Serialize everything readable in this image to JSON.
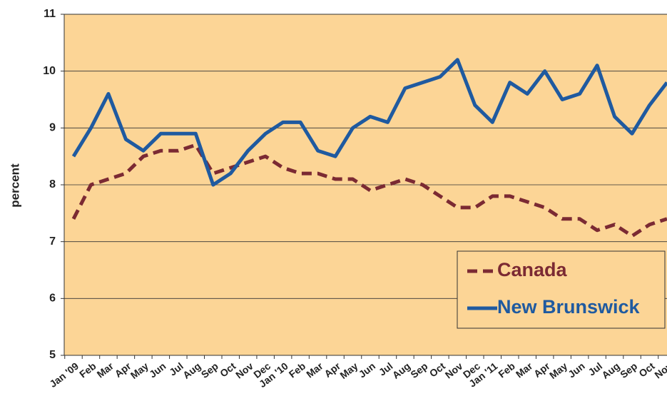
{
  "chart_data": {
    "type": "line",
    "y_label": "percent",
    "categories": [
      "Jan '09",
      "Feb",
      "Mar",
      "Apr",
      "May",
      "Jun",
      "Jul",
      "Aug",
      "Sep",
      "Oct",
      "Nov",
      "Dec",
      "Jan '10",
      "Feb",
      "Mar",
      "Apr",
      "May",
      "Jun",
      "Jul",
      "Aug",
      "Sep",
      "Oct",
      "Nov",
      "Dec",
      "Jan '11",
      "Feb",
      "Mar",
      "Apr",
      "May",
      "Jun",
      "Jul",
      "Aug",
      "Sep",
      "Oct",
      "Nov"
    ],
    "series": [
      {
        "name": "Canada",
        "color": "#7b2a33",
        "line_style": "dashed",
        "values": [
          7.4,
          8.0,
          8.1,
          8.2,
          8.5,
          8.6,
          8.6,
          8.7,
          8.2,
          8.3,
          8.4,
          8.5,
          8.3,
          8.2,
          8.2,
          8.1,
          8.1,
          7.9,
          8.0,
          8.1,
          8.0,
          7.8,
          7.6,
          7.6,
          7.8,
          7.8,
          7.7,
          7.6,
          7.4,
          7.4,
          7.2,
          7.3,
          7.1,
          7.3,
          7.4
        ]
      },
      {
        "name": "New Brunswick",
        "color": "#1f5aa0",
        "line_style": "solid",
        "values": [
          8.5,
          9.0,
          9.6,
          8.8,
          8.6,
          8.9,
          8.9,
          8.9,
          8.0,
          8.2,
          8.6,
          8.9,
          9.1,
          9.1,
          8.6,
          8.5,
          9.0,
          9.2,
          9.1,
          9.7,
          9.8,
          9.9,
          10.2,
          9.4,
          9.1,
          9.8,
          9.6,
          10.0,
          9.5,
          9.6,
          10.1,
          9.2,
          8.9,
          9.4,
          9.8
        ]
      }
    ],
    "ylim": [
      5,
      11
    ],
    "yticks": [
      5,
      6,
      7,
      8,
      9,
      10,
      11
    ],
    "grid": true,
    "background": "#fcd596",
    "legend_position": "lower right"
  }
}
